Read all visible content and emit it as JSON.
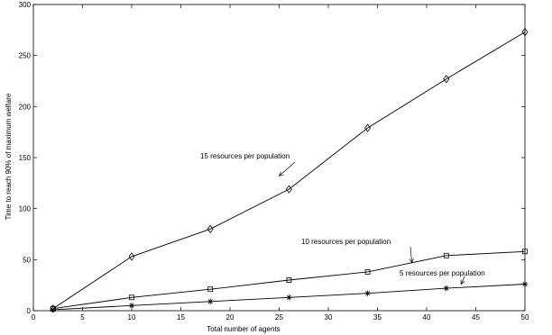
{
  "chart_data": {
    "type": "line",
    "title": "",
    "xlabel": "Total number of agents",
    "ylabel": "Time to reach 90% of maximum welfare",
    "xlim": [
      0,
      50
    ],
    "ylim": [
      0,
      300
    ],
    "xticks": [
      0,
      5,
      10,
      15,
      20,
      25,
      30,
      35,
      40,
      45,
      50
    ],
    "yticks": [
      0,
      50,
      100,
      150,
      200,
      250,
      300
    ],
    "grid": false,
    "legend": "none",
    "series": [
      {
        "marker": "diamond",
        "x": [
          2,
          10,
          18,
          26,
          34,
          42,
          50
        ],
        "values": [
          2,
          53,
          80,
          119,
          179,
          227,
          273
        ]
      },
      {
        "marker": "square",
        "x": [
          2,
          10,
          18,
          26,
          34,
          42,
          50
        ],
        "values": [
          2,
          13,
          21,
          30,
          38,
          54,
          58
        ]
      },
      {
        "marker": "asterisk",
        "x": [
          2,
          10,
          18,
          26,
          34,
          42,
          50
        ],
        "values": [
          1,
          5,
          9,
          13,
          17,
          22,
          26
        ]
      }
    ],
    "annotations": [
      {
        "text": "15 resources per population",
        "arrow_to": [
          25,
          132
        ]
      },
      {
        "text": "10 resources per population",
        "arrow_to": [
          38.5,
          47
        ]
      },
      {
        "text": "5 resources per population",
        "arrow_to": [
          43.5,
          26
        ]
      }
    ]
  }
}
